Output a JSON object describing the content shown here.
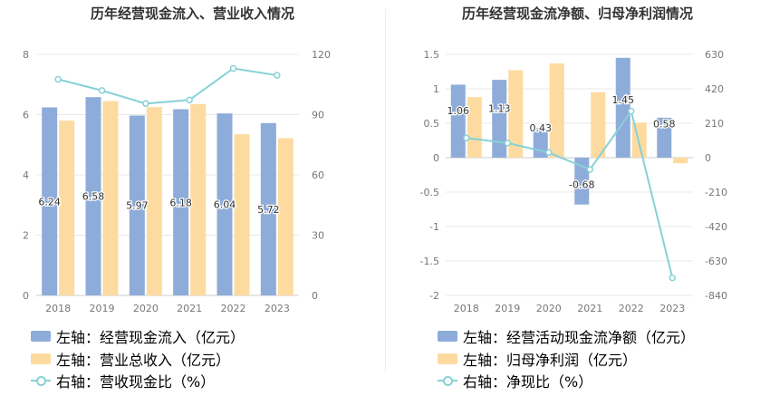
{
  "colors": {
    "bar1": "#8eacd9",
    "bar2": "#fddba0",
    "line": "#86d1d6",
    "grid": "#e8e8e8",
    "axis_text": "#777777",
    "label_text": "#333333"
  },
  "chart_data": [
    {
      "type": "bar",
      "title": "历年经营现金流入、营业收入情况",
      "categories": [
        "2018",
        "2019",
        "2020",
        "2021",
        "2022",
        "2023"
      ],
      "y_left": {
        "ticks": [
          0,
          2,
          4,
          6,
          8
        ],
        "ylim": [
          0,
          8
        ]
      },
      "y_right": {
        "ticks": [
          0,
          30,
          60,
          90,
          120
        ],
        "ylim": [
          0,
          120
        ]
      },
      "grid": true,
      "legend_position": "bottom",
      "series": [
        {
          "name": "左轴：经营现金流入（亿元）",
          "type": "bar",
          "axis": "left",
          "values": [
            6.24,
            6.58,
            5.97,
            6.18,
            6.04,
            5.72
          ],
          "labels": [
            "6.24",
            "6.58",
            "5.97",
            "6.18",
            "6.04",
            "5.72"
          ]
        },
        {
          "name": "左轴：营业总收入（亿元）",
          "type": "bar",
          "axis": "left",
          "values": [
            5.8,
            6.45,
            6.25,
            6.35,
            5.35,
            5.22
          ]
        },
        {
          "name": "右轴：营收现金比（%）",
          "type": "line",
          "axis": "right",
          "values": [
            107.6,
            102.0,
            95.5,
            97.3,
            113.0,
            109.6
          ]
        }
      ]
    },
    {
      "type": "bar",
      "title": "历年经营现金流净额、归母净利润情况",
      "categories": [
        "2018",
        "2019",
        "2020",
        "2021",
        "2022",
        "2023"
      ],
      "y_left": {
        "ticks": [
          -2,
          -1.5,
          -1,
          -0.5,
          0,
          0.5,
          1,
          1.5
        ],
        "ylim": [
          -2,
          1.5
        ]
      },
      "y_right": {
        "ticks": [
          -840,
          -630,
          -420,
          -210,
          0,
          210,
          420,
          630
        ],
        "ylim": [
          -840,
          630
        ]
      },
      "grid": true,
      "legend_position": "bottom",
      "series": [
        {
          "name": "左轴：经营活动现金流净额（亿元）",
          "type": "bar",
          "axis": "left",
          "values": [
            1.06,
            1.13,
            0.43,
            -0.68,
            1.45,
            0.58
          ],
          "labels": [
            "1.06",
            "1.13",
            "0.43",
            "-0.68",
            "1.45",
            "0.58"
          ]
        },
        {
          "name": "左轴：归母净利润（亿元）",
          "type": "bar",
          "axis": "left",
          "values": [
            0.88,
            1.27,
            1.37,
            0.95,
            0.51,
            -0.08
          ]
        },
        {
          "name": "右轴：净现比（%）",
          "type": "line",
          "axis": "right",
          "values": [
            120,
            89,
            31,
            -72,
            284,
            -733
          ]
        }
      ]
    }
  ]
}
